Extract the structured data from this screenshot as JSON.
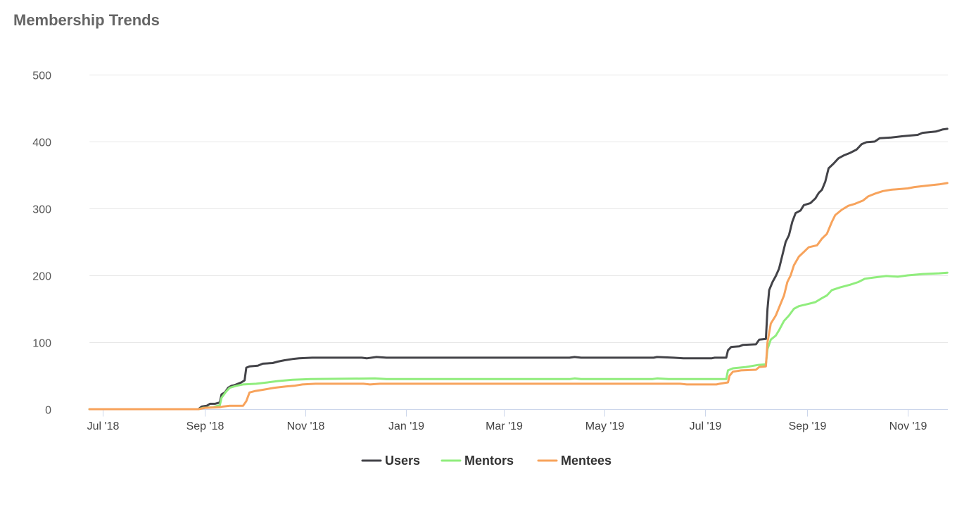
{
  "title": "Membership Trends",
  "chart_data": {
    "type": "line",
    "title": "Membership Trends",
    "xlabel": "",
    "ylabel": "",
    "x_range": [
      "2018-06-23",
      "2019-11-25"
    ],
    "ylim": [
      0,
      500
    ],
    "y_ticks": [
      0,
      100,
      200,
      300,
      400,
      500
    ],
    "x_ticks": [
      {
        "date": "2018-07-01",
        "label": "Jul '18"
      },
      {
        "date": "2018-09-01",
        "label": "Sep '18"
      },
      {
        "date": "2018-11-01",
        "label": "Nov '18"
      },
      {
        "date": "2019-01-01",
        "label": "Jan '19"
      },
      {
        "date": "2019-03-01",
        "label": "Mar '19"
      },
      {
        "date": "2019-05-01",
        "label": "May '19"
      },
      {
        "date": "2019-07-01",
        "label": "Jul '19"
      },
      {
        "date": "2019-09-01",
        "label": "Sep '19"
      },
      {
        "date": "2019-11-01",
        "label": "Nov '19"
      }
    ],
    "grid": true,
    "legend_position": "bottom-center",
    "series": [
      {
        "name": "Users",
        "color": "#434348",
        "points": [
          [
            "2018-06-23",
            0
          ],
          [
            "2018-08-28",
            0
          ],
          [
            "2018-08-30",
            4
          ],
          [
            "2018-09-02",
            5
          ],
          [
            "2018-09-04",
            8
          ],
          [
            "2018-09-07",
            8
          ],
          [
            "2018-09-10",
            10
          ],
          [
            "2018-09-11",
            22
          ],
          [
            "2018-09-13",
            25
          ],
          [
            "2018-09-15",
            32
          ],
          [
            "2018-09-17",
            35
          ],
          [
            "2018-09-19",
            36
          ],
          [
            "2018-09-21",
            38
          ],
          [
            "2018-09-23",
            40
          ],
          [
            "2018-09-25",
            43
          ],
          [
            "2018-09-26",
            62
          ],
          [
            "2018-09-28",
            64
          ],
          [
            "2018-10-03",
            65
          ],
          [
            "2018-10-06",
            68
          ],
          [
            "2018-10-12",
            69
          ],
          [
            "2018-10-15",
            71
          ],
          [
            "2018-10-19",
            73
          ],
          [
            "2018-10-24",
            75
          ],
          [
            "2018-10-28",
            76
          ],
          [
            "2018-11-05",
            77
          ],
          [
            "2018-12-05",
            77
          ],
          [
            "2018-12-08",
            76
          ],
          [
            "2018-12-14",
            78
          ],
          [
            "2018-12-20",
            77
          ],
          [
            "2019-04-10",
            77
          ],
          [
            "2019-04-13",
            78
          ],
          [
            "2019-04-17",
            77
          ],
          [
            "2019-05-31",
            77
          ],
          [
            "2019-06-02",
            78
          ],
          [
            "2019-06-12",
            77
          ],
          [
            "2019-06-18",
            76
          ],
          [
            "2019-07-05",
            76
          ],
          [
            "2019-07-07",
            77
          ],
          [
            "2019-07-14",
            77
          ],
          [
            "2019-07-15",
            88
          ],
          [
            "2019-07-17",
            93
          ],
          [
            "2019-07-22",
            94
          ],
          [
            "2019-07-24",
            96
          ],
          [
            "2019-08-01",
            97
          ],
          [
            "2019-08-03",
            104
          ],
          [
            "2019-08-07",
            105
          ],
          [
            "2019-08-08",
            150
          ],
          [
            "2019-08-09",
            178
          ],
          [
            "2019-08-11",
            190
          ],
          [
            "2019-08-13",
            199
          ],
          [
            "2019-08-15",
            210
          ],
          [
            "2019-08-17",
            230
          ],
          [
            "2019-08-19",
            250
          ],
          [
            "2019-08-21",
            260
          ],
          [
            "2019-08-23",
            280
          ],
          [
            "2019-08-25",
            293
          ],
          [
            "2019-08-28",
            297
          ],
          [
            "2019-08-30",
            305
          ],
          [
            "2019-09-03",
            308
          ],
          [
            "2019-09-06",
            315
          ],
          [
            "2019-09-08",
            323
          ],
          [
            "2019-09-10",
            328
          ],
          [
            "2019-09-12",
            340
          ],
          [
            "2019-09-14",
            360
          ],
          [
            "2019-09-17",
            367
          ],
          [
            "2019-09-20",
            375
          ],
          [
            "2019-09-23",
            379
          ],
          [
            "2019-09-27",
            383
          ],
          [
            "2019-10-01",
            388
          ],
          [
            "2019-10-04",
            396
          ],
          [
            "2019-10-07",
            399
          ],
          [
            "2019-10-12",
            400
          ],
          [
            "2019-10-15",
            405
          ],
          [
            "2019-10-22",
            406
          ],
          [
            "2019-10-29",
            408
          ],
          [
            "2019-11-07",
            410
          ],
          [
            "2019-11-10",
            413
          ],
          [
            "2019-11-18",
            415
          ],
          [
            "2019-11-22",
            418
          ],
          [
            "2019-11-25",
            419
          ]
        ]
      },
      {
        "name": "Mentors",
        "color": "#90ed7d",
        "points": [
          [
            "2018-06-23",
            0
          ],
          [
            "2018-08-28",
            0
          ],
          [
            "2018-08-31",
            2
          ],
          [
            "2018-09-06",
            3
          ],
          [
            "2018-09-10",
            6
          ],
          [
            "2018-09-11",
            17
          ],
          [
            "2018-09-14",
            27
          ],
          [
            "2018-09-16",
            32
          ],
          [
            "2018-09-20",
            35
          ],
          [
            "2018-09-24",
            37
          ],
          [
            "2018-10-02",
            38
          ],
          [
            "2018-10-09",
            40
          ],
          [
            "2018-10-15",
            42
          ],
          [
            "2018-10-24",
            44
          ],
          [
            "2018-11-04",
            45
          ],
          [
            "2018-12-13",
            46
          ],
          [
            "2018-12-20",
            45
          ],
          [
            "2019-04-10",
            45
          ],
          [
            "2019-04-13",
            46
          ],
          [
            "2019-04-17",
            45
          ],
          [
            "2019-05-30",
            45
          ],
          [
            "2019-06-02",
            46
          ],
          [
            "2019-06-09",
            45
          ],
          [
            "2019-07-14",
            45
          ],
          [
            "2019-07-15",
            58
          ],
          [
            "2019-07-18",
            61
          ],
          [
            "2019-07-26",
            63
          ],
          [
            "2019-08-02",
            66
          ],
          [
            "2019-08-07",
            67
          ],
          [
            "2019-08-08",
            90
          ],
          [
            "2019-08-10",
            104
          ],
          [
            "2019-08-13",
            110
          ],
          [
            "2019-08-15",
            118
          ],
          [
            "2019-08-18",
            132
          ],
          [
            "2019-08-21",
            140
          ],
          [
            "2019-08-24",
            150
          ],
          [
            "2019-08-27",
            154
          ],
          [
            "2019-09-01",
            157
          ],
          [
            "2019-09-06",
            160
          ],
          [
            "2019-09-10",
            166
          ],
          [
            "2019-09-13",
            170
          ],
          [
            "2019-09-16",
            178
          ],
          [
            "2019-09-21",
            182
          ],
          [
            "2019-09-27",
            186
          ],
          [
            "2019-10-02",
            190
          ],
          [
            "2019-10-06",
            195
          ],
          [
            "2019-10-12",
            197
          ],
          [
            "2019-10-19",
            199
          ],
          [
            "2019-10-26",
            198
          ],
          [
            "2019-11-01",
            200
          ],
          [
            "2019-11-10",
            202
          ],
          [
            "2019-11-20",
            203
          ],
          [
            "2019-11-25",
            204
          ]
        ]
      },
      {
        "name": "Mentees",
        "color": "#f7a35c",
        "points": [
          [
            "2018-06-23",
            0
          ],
          [
            "2018-08-28",
            0
          ],
          [
            "2018-09-01",
            2
          ],
          [
            "2018-09-10",
            3
          ],
          [
            "2018-09-12",
            4
          ],
          [
            "2018-09-16",
            5
          ],
          [
            "2018-09-24",
            5
          ],
          [
            "2018-09-26",
            12
          ],
          [
            "2018-09-28",
            25
          ],
          [
            "2018-10-01",
            27
          ],
          [
            "2018-10-06",
            29
          ],
          [
            "2018-10-13",
            32
          ],
          [
            "2018-10-20",
            34
          ],
          [
            "2018-10-25",
            35
          ],
          [
            "2018-10-30",
            37
          ],
          [
            "2018-11-07",
            38
          ],
          [
            "2018-12-06",
            38
          ],
          [
            "2018-12-10",
            37
          ],
          [
            "2018-12-16",
            38
          ],
          [
            "2019-06-16",
            38
          ],
          [
            "2019-06-20",
            37
          ],
          [
            "2019-07-08",
            37
          ],
          [
            "2019-07-10",
            38
          ],
          [
            "2019-07-15",
            40
          ],
          [
            "2019-07-16",
            50
          ],
          [
            "2019-07-18",
            56
          ],
          [
            "2019-07-23",
            58
          ],
          [
            "2019-08-01",
            59
          ],
          [
            "2019-08-03",
            63
          ],
          [
            "2019-08-07",
            64
          ],
          [
            "2019-08-08",
            100
          ],
          [
            "2019-08-10",
            128
          ],
          [
            "2019-08-13",
            140
          ],
          [
            "2019-08-16",
            158
          ],
          [
            "2019-08-18",
            170
          ],
          [
            "2019-08-20",
            190
          ],
          [
            "2019-08-22",
            200
          ],
          [
            "2019-08-24",
            215
          ],
          [
            "2019-08-27",
            228
          ],
          [
            "2019-08-30",
            235
          ],
          [
            "2019-09-02",
            242
          ],
          [
            "2019-09-07",
            245
          ],
          [
            "2019-09-10",
            255
          ],
          [
            "2019-09-13",
            262
          ],
          [
            "2019-09-16",
            280
          ],
          [
            "2019-09-18",
            290
          ],
          [
            "2019-09-22",
            298
          ],
          [
            "2019-09-26",
            304
          ],
          [
            "2019-09-30",
            307
          ],
          [
            "2019-10-05",
            312
          ],
          [
            "2019-10-08",
            318
          ],
          [
            "2019-10-12",
            322
          ],
          [
            "2019-10-17",
            326
          ],
          [
            "2019-10-22",
            328
          ],
          [
            "2019-11-01",
            330
          ],
          [
            "2019-11-05",
            332
          ],
          [
            "2019-11-12",
            334
          ],
          [
            "2019-11-20",
            336
          ],
          [
            "2019-11-25",
            338
          ]
        ]
      }
    ]
  }
}
